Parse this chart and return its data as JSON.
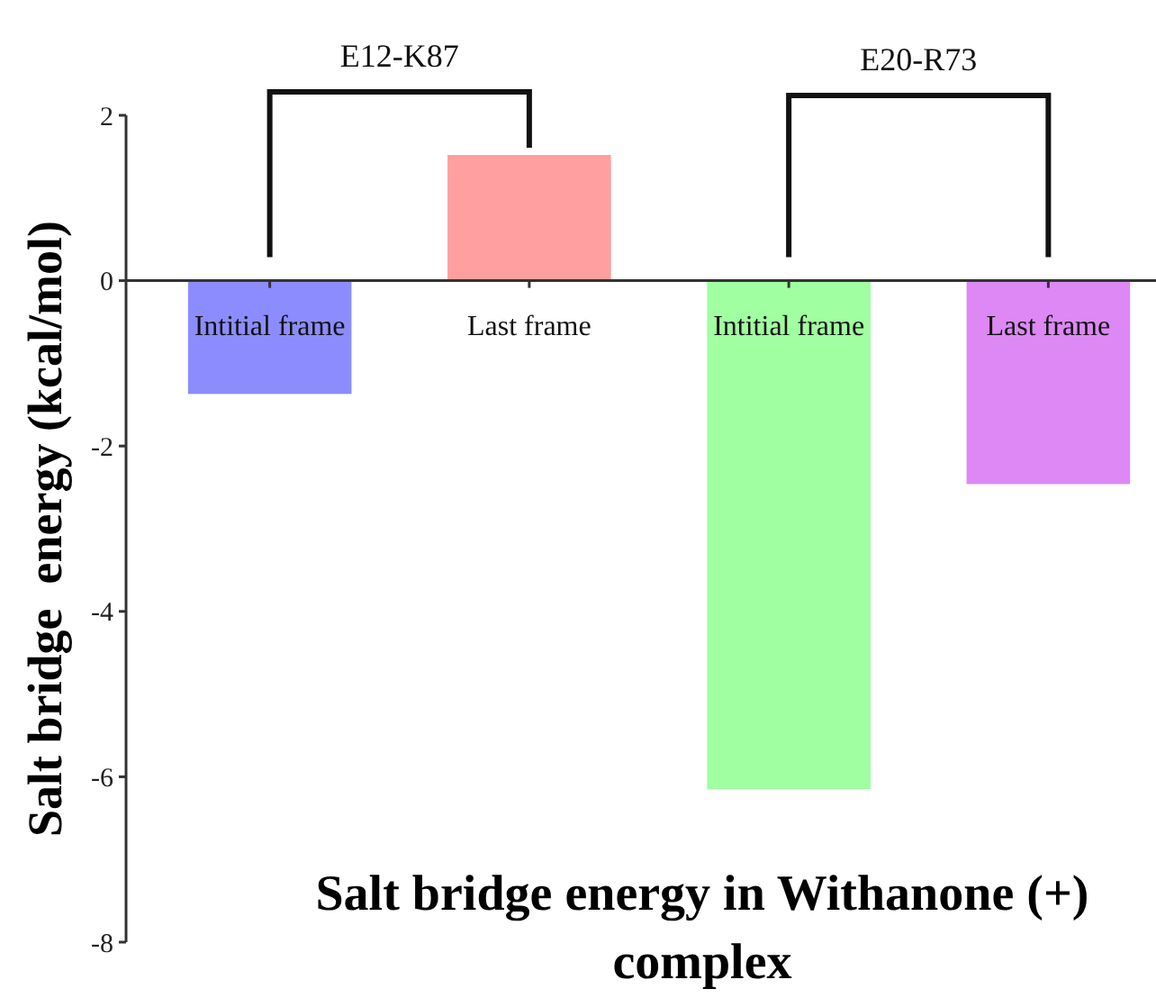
{
  "chart_data": {
    "type": "bar",
    "xlabel": "Salt bridge energy in Withanone (+) complex",
    "ylabel": "Salt bridge  energy (kcal/mol)",
    "categories": [
      "Intitial frame",
      "Last frame",
      "Intitial frame",
      "Last frame"
    ],
    "values": [
      -1.37,
      1.52,
      -6.15,
      -2.46
    ],
    "colors": [
      "#8c8cff",
      "#ff9f9f",
      "#a0ffa0",
      "#dd88f5"
    ],
    "ylim": [
      -8,
      2
    ],
    "yticks": [
      -8,
      -6,
      -4,
      -2,
      0,
      2
    ],
    "annotations": [
      "E12-K87",
      "E20-R73"
    ]
  }
}
